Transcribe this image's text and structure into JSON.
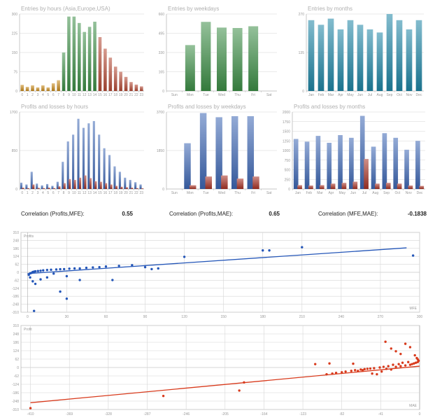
{
  "chart_data": [
    {
      "id": "hours",
      "type": "bar",
      "title": "Entries by hours (Asia,Europe,USA)",
      "ylim": [
        0,
        300
      ],
      "yticks": [
        "0",
        "75",
        "150",
        "225",
        "300"
      ],
      "categories": [
        "0",
        "1",
        "2",
        "3",
        "4",
        "5",
        "6",
        "7",
        "8",
        "9",
        "10",
        "11",
        "12",
        "13",
        "14",
        "15",
        "16",
        "17",
        "18",
        "19",
        "20",
        "21",
        "22",
        "23"
      ],
      "series": [
        {
          "values": [
            24,
            16,
            22,
            14,
            22,
            14,
            30,
            42,
            150,
            290,
            290,
            265,
            230,
            250,
            270,
            210,
            165,
            130,
            95,
            75,
            55,
            35,
            25,
            18
          ]
        }
      ],
      "bar_colors": [
        "orange",
        "orange",
        "orange",
        "orange",
        "orange",
        "orange",
        "orange",
        "orange",
        "green",
        "green",
        "green",
        "green",
        "green",
        "green",
        "green",
        "red",
        "red",
        "red",
        "red",
        "red",
        "red",
        "red",
        "red",
        "red"
      ]
    },
    {
      "id": "weekdays",
      "type": "bar",
      "title": "Entries by weekdays",
      "ylim": [
        0,
        880
      ],
      "yticks": [
        "0",
        "165",
        "330",
        "495",
        "660"
      ],
      "categories": [
        "Sun",
        "Mon",
        "Tue",
        "Wed",
        "Thu",
        "Fri",
        "Sat"
      ],
      "series": [
        {
          "values": [
            0,
            525,
            790,
            725,
            720,
            740,
            0
          ]
        }
      ],
      "bar_colors": [
        "green",
        "green",
        "green",
        "green",
        "green",
        "green",
        "green"
      ]
    },
    {
      "id": "months",
      "type": "bar",
      "title": "Entries by months",
      "ylim": [
        0,
        250
      ],
      "yticks": [
        "0",
        "135",
        "270"
      ],
      "categories": [
        "Jan",
        "Feb",
        "Mar",
        "Apr",
        "May",
        "Jun",
        "Jul",
        "Aug",
        "Sep",
        "Oct",
        "Nov",
        "Dec"
      ],
      "series": [
        {
          "values": [
            230,
            215,
            235,
            200,
            230,
            215,
            200,
            190,
            255,
            230,
            200,
            230
          ]
        }
      ],
      "bar_colors": [
        "teal",
        "teal",
        "teal",
        "teal",
        "teal",
        "teal",
        "teal",
        "teal",
        "teal",
        "teal",
        "teal",
        "teal"
      ]
    },
    {
      "id": "pl_hours",
      "type": "bar",
      "title": "Profits and losses by hours",
      "ylim": [
        0,
        1700
      ],
      "yticks": [
        "0",
        "850",
        "1700"
      ],
      "categories": [
        "0",
        "1",
        "2",
        "3",
        "4",
        "5",
        "6",
        "7",
        "8",
        "9",
        "10",
        "11",
        "12",
        "13",
        "14",
        "15",
        "16",
        "17",
        "18",
        "19",
        "20",
        "21",
        "22",
        "23"
      ],
      "series": [
        {
          "values": [
            140,
            100,
            380,
            120,
            80,
            110,
            70,
            160,
            600,
            1050,
            1200,
            1550,
            1350,
            1450,
            1500,
            1200,
            900,
            750,
            500,
            380,
            250,
            200,
            150,
            100
          ]
        },
        {
          "values": [
            30,
            20,
            100,
            25,
            20,
            30,
            20,
            60,
            130,
            220,
            200,
            250,
            300,
            240,
            170,
            160,
            130,
            100,
            70,
            50,
            40,
            30,
            20,
            15
          ]
        }
      ],
      "series_colors": [
        "blue",
        "red"
      ]
    },
    {
      "id": "pl_weekdays",
      "type": "bar",
      "title": "Profits and losses by weekdays",
      "ylim": [
        0,
        3700
      ],
      "yticks": [
        "0",
        "1850",
        "3700"
      ],
      "categories": [
        "Sun",
        "Mon",
        "Tue",
        "Wed",
        "Thu",
        "Fri",
        "Sat"
      ],
      "series": [
        {
          "values": [
            0,
            2200,
            3650,
            3450,
            3500,
            3500,
            0
          ]
        },
        {
          "values": [
            0,
            180,
            600,
            650,
            500,
            600,
            0
          ]
        }
      ],
      "series_colors": [
        "blue",
        "red"
      ]
    },
    {
      "id": "pl_months",
      "type": "bar",
      "title": "Profits and losses by months",
      "ylim": [
        0,
        2000
      ],
      "yticks": [
        "0",
        "250",
        "500",
        "750",
        "1000",
        "1250",
        "1500",
        "1750",
        "2000"
      ],
      "categories": [
        "Jan",
        "Feb",
        "Mar",
        "Apr",
        "May",
        "Jun",
        "Jul",
        "Aug",
        "Sep",
        "Oct",
        "Nov",
        "Dec"
      ],
      "series": [
        {
          "values": [
            1300,
            1230,
            1380,
            1200,
            1400,
            1330,
            1900,
            1100,
            1450,
            1330,
            1020,
            1250
          ]
        },
        {
          "values": [
            100,
            90,
            100,
            140,
            160,
            190,
            780,
            140,
            160,
            140,
            90,
            80
          ]
        }
      ],
      "series_colors": [
        "blue",
        "red"
      ]
    },
    {
      "id": "scatter_mfe",
      "type": "scatter",
      "title": "Profits",
      "xlabel": "MFE",
      "xlim": [
        -5,
        300
      ],
      "ylim": [
        -310,
        310
      ],
      "xticks": [
        0,
        30,
        60,
        90,
        120,
        150,
        180,
        210,
        240,
        270,
        300
      ],
      "yticks": [
        -310,
        -248,
        -186,
        -124,
        -62,
        0,
        62,
        124,
        186,
        248,
        310
      ],
      "points": [
        [
          1,
          -20
        ],
        [
          2,
          -8
        ],
        [
          3,
          -5
        ],
        [
          4,
          2
        ],
        [
          5,
          5
        ],
        [
          6,
          8
        ],
        [
          8,
          10
        ],
        [
          10,
          12
        ],
        [
          12,
          15
        ],
        [
          15,
          18
        ],
        [
          18,
          20
        ],
        [
          22,
          22
        ],
        [
          25,
          24
        ],
        [
          28,
          25
        ],
        [
          32,
          28
        ],
        [
          36,
          30
        ],
        [
          40,
          30
        ],
        [
          45,
          35
        ],
        [
          50,
          38
        ],
        [
          55,
          40
        ],
        [
          60,
          45
        ],
        [
          70,
          50
        ],
        [
          80,
          55
        ],
        [
          90,
          40
        ],
        [
          100,
          30
        ],
        [
          120,
          120
        ],
        [
          180,
          170
        ],
        [
          185,
          170
        ],
        [
          210,
          195
        ],
        [
          295,
          130
        ],
        [
          2,
          -40
        ],
        [
          4,
          -70
        ],
        [
          6,
          -90
        ],
        [
          10,
          -55
        ],
        [
          15,
          -40
        ],
        [
          20,
          -10
        ],
        [
          25,
          -150
        ],
        [
          30,
          -205
        ],
        [
          5,
          -300
        ],
        [
          65,
          -60
        ],
        [
          95,
          25
        ],
        [
          40,
          -60
        ],
        [
          30,
          -30
        ]
      ],
      "trendline": [
        [
          0,
          -10
        ],
        [
          290,
          190
        ]
      ],
      "color": "blue"
    },
    {
      "id": "scatter_mae",
      "type": "scatter",
      "title": "Profit",
      "xlabel": "MAE",
      "xlim": [
        -420,
        0
      ],
      "ylim": [
        -310,
        310
      ],
      "xticks": [
        -410,
        -369,
        -328,
        -287,
        -246,
        -205,
        -164,
        -123,
        -82,
        -41,
        0
      ],
      "yticks": [
        -310,
        -248,
        -186,
        -124,
        -62,
        0,
        62,
        124,
        186,
        248,
        310
      ],
      "points": [
        [
          -410,
          -300
        ],
        [
          -270,
          -210
        ],
        [
          -190,
          -170
        ],
        [
          -185,
          -110
        ],
        [
          -110,
          25
        ],
        [
          -95,
          30
        ],
        [
          -70,
          28
        ],
        [
          -65,
          -25
        ],
        [
          -60,
          -20
        ],
        [
          -55,
          -10
        ],
        [
          -50,
          -45
        ],
        [
          -45,
          -50
        ],
        [
          -40,
          -30
        ],
        [
          -35,
          -10
        ],
        [
          -30,
          -15
        ],
        [
          -25,
          5
        ],
        [
          -20,
          10
        ],
        [
          -15,
          15
        ],
        [
          -10,
          20
        ],
        [
          -8,
          25
        ],
        [
          -6,
          30
        ],
        [
          -4,
          35
        ],
        [
          -2,
          40
        ],
        [
          -1,
          50
        ],
        [
          -36,
          190
        ],
        [
          -30,
          140
        ],
        [
          -25,
          120
        ],
        [
          -20,
          100
        ],
        [
          -15,
          175
        ],
        [
          -10,
          150
        ],
        [
          -5,
          90
        ],
        [
          -3,
          70
        ],
        [
          -2,
          60
        ],
        [
          -12,
          40
        ],
        [
          -18,
          35
        ],
        [
          -22,
          25
        ],
        [
          -28,
          20
        ],
        [
          -33,
          10
        ],
        [
          -38,
          5
        ],
        [
          -42,
          0
        ],
        [
          -48,
          -5
        ],
        [
          -52,
          -8
        ],
        [
          -58,
          -12
        ],
        [
          -62,
          -15
        ],
        [
          -68,
          -20
        ],
        [
          -72,
          -25
        ],
        [
          -78,
          -30
        ],
        [
          -82,
          -35
        ],
        [
          -88,
          -40
        ],
        [
          -92,
          -45
        ],
        [
          -98,
          -50
        ]
      ],
      "trendline": [
        [
          -410,
          -260
        ],
        [
          0,
          10
        ]
      ],
      "color": "red"
    }
  ],
  "correlations": [
    {
      "label": "Correlation (Profits,MFE):",
      "value": "0.55"
    },
    {
      "label": "Correlation (Profits,MAE):",
      "value": "0.65"
    },
    {
      "label": "Correlation (MFE,MAE):",
      "value": "-0.1838"
    }
  ],
  "colors": {
    "orange": "#c98b1c",
    "green": "#3d8f47",
    "red": "#b54a35",
    "teal": "#1e86a6",
    "blue": "#3d67b5",
    "pl_red": "#a83225",
    "scatter_blue": "#2456b8",
    "scatter_red": "#d83a1c",
    "grid": "#d6d6d6"
  }
}
